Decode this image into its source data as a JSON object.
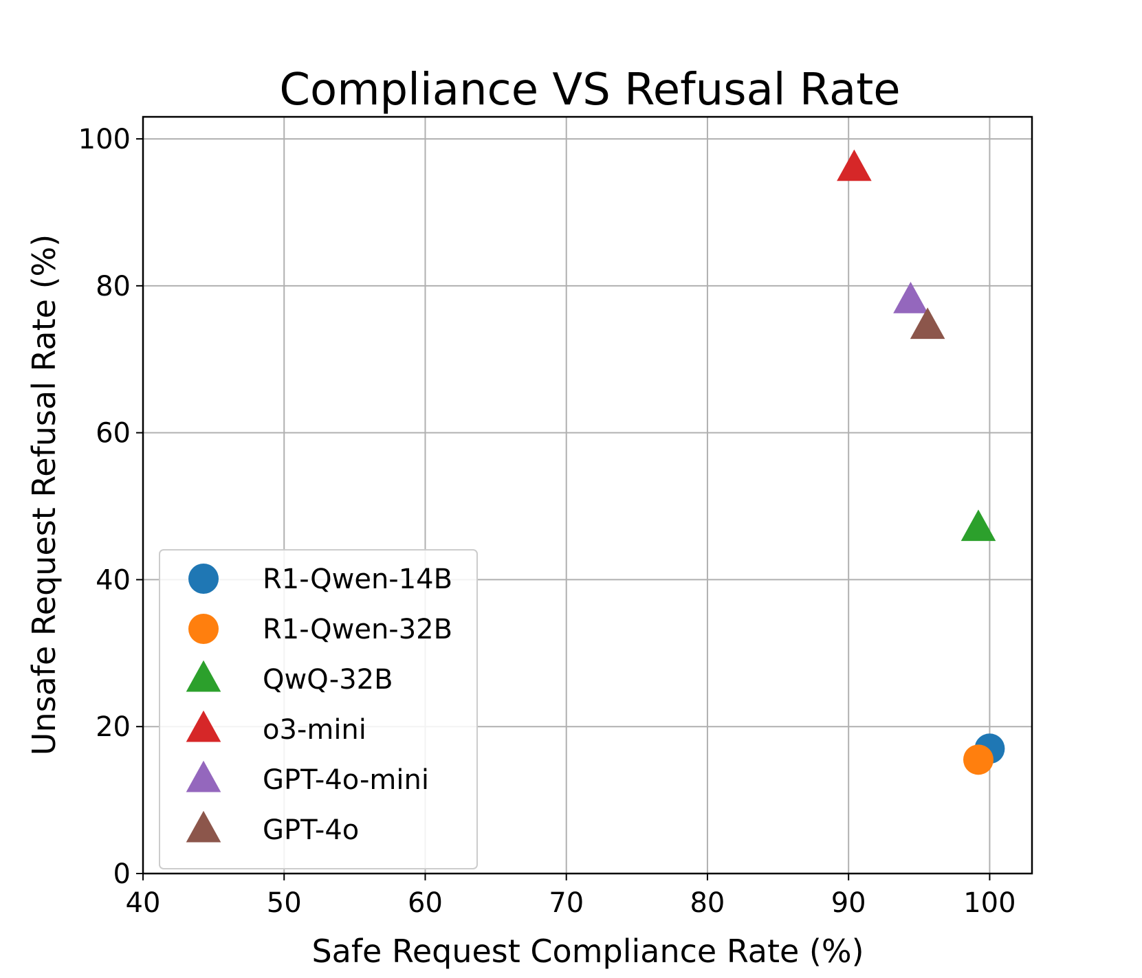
{
  "chart_data": {
    "type": "scatter",
    "title": "Compliance VS Refusal Rate",
    "xlabel": "Safe Request Compliance Rate (%)",
    "ylabel": "Unsafe Request Refusal Rate (%)",
    "xlim": [
      40,
      103
    ],
    "ylim": [
      0,
      103
    ],
    "xticks": [
      40,
      50,
      60,
      70,
      80,
      90,
      100
    ],
    "yticks": [
      0,
      20,
      40,
      60,
      80,
      100
    ],
    "grid": true,
    "legend_position": "lower-left",
    "series": [
      {
        "name": "R1-Qwen-14B",
        "marker": "circle",
        "color": "#1f77b4",
        "x": 100.0,
        "y": 17.0
      },
      {
        "name": "R1-Qwen-32B",
        "marker": "circle",
        "color": "#ff7f0e",
        "x": 99.2,
        "y": 15.5
      },
      {
        "name": "QwQ-32B",
        "marker": "triangle",
        "color": "#2ca02c",
        "x": 99.2,
        "y": 47.0
      },
      {
        "name": "o3-mini",
        "marker": "triangle",
        "color": "#d62728",
        "x": 90.4,
        "y": 96.0
      },
      {
        "name": "GPT-4o-mini",
        "marker": "triangle",
        "color": "#9467bd",
        "x": 94.4,
        "y": 78.0
      },
      {
        "name": "GPT-4o",
        "marker": "triangle",
        "color": "#8c564b",
        "x": 95.6,
        "y": 74.5
      }
    ]
  }
}
